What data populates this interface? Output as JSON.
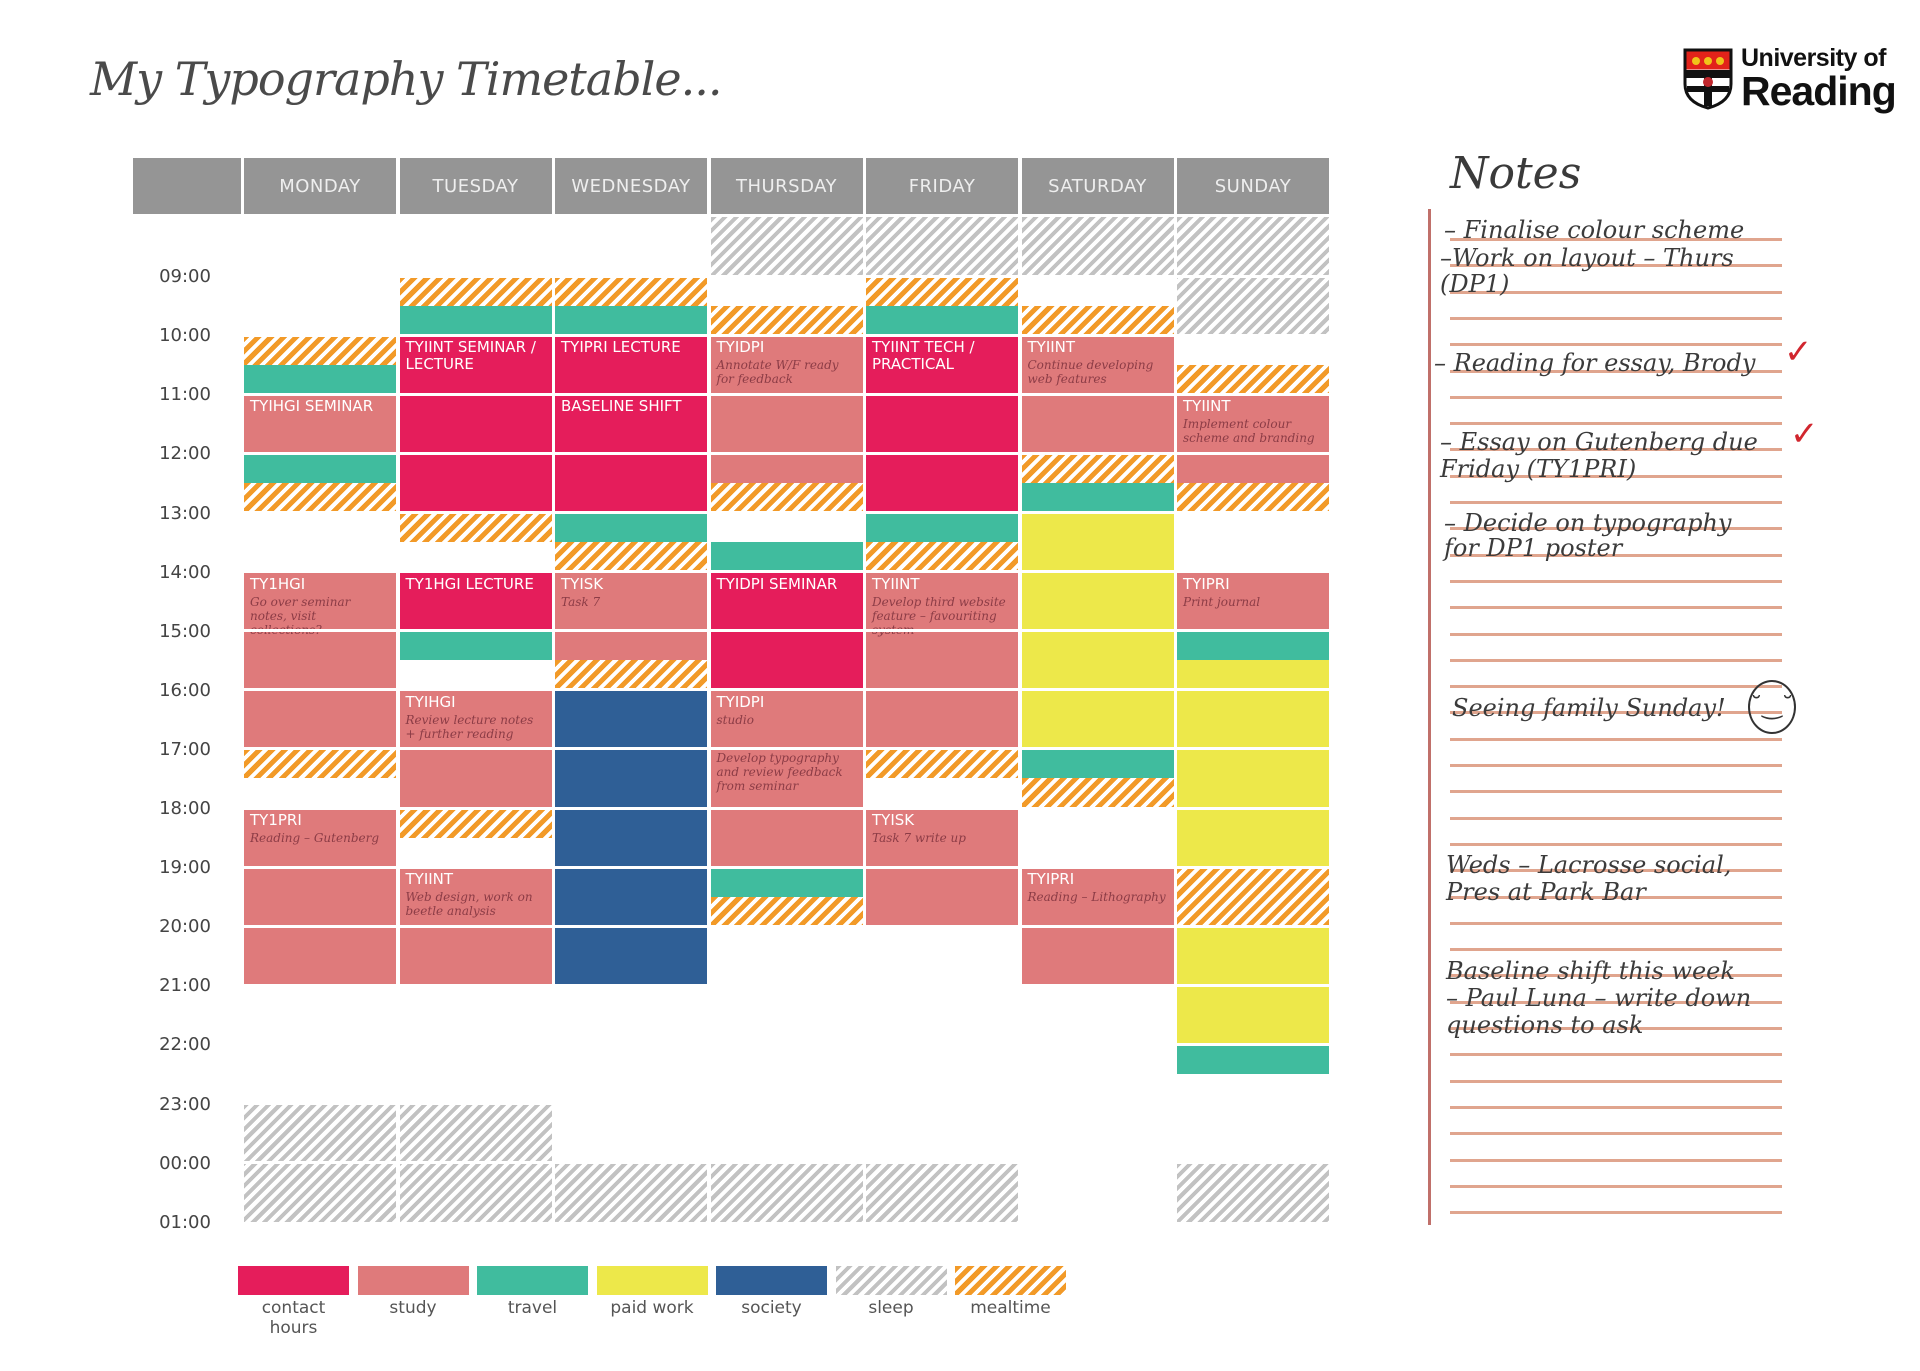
{
  "title": "My Typography Timetable...",
  "logo": {
    "line1": "University of",
    "line2": "Reading"
  },
  "days": [
    "MONDAY",
    "TUESDAY",
    "WEDNESDAY",
    "THURSDAY",
    "FRIDAY",
    "SATURDAY",
    "SUNDAY"
  ],
  "times": [
    "09:00",
    "10:00",
    "11:00",
    "12:00",
    "13:00",
    "14:00",
    "15:00",
    "16:00",
    "17:00",
    "18:00",
    "19:00",
    "20:00",
    "21:00",
    "22:00",
    "23:00",
    "00:00",
    "01:00"
  ],
  "colors": {
    "contact": "#e51d5b",
    "study": "#df7a7b",
    "travel": "#40bc9e",
    "paid": "#ede84a",
    "society": "#2f5f96",
    "sleep": "#c2c2c2",
    "meal": "#f29a28"
  },
  "legend": [
    {
      "type": "contact",
      "label": "contact hours"
    },
    {
      "type": "study",
      "label": "study"
    },
    {
      "type": "travel",
      "label": "travel"
    },
    {
      "type": "paid",
      "label": "paid work"
    },
    {
      "type": "society",
      "label": "society"
    },
    {
      "type": "sleep",
      "label": "sleep"
    },
    {
      "type": "meal",
      "label": "mealtime"
    }
  ],
  "events": [
    {
      "day": 0,
      "start": "10:00",
      "end": "10:30",
      "type": "meal"
    },
    {
      "day": 0,
      "start": "10:30",
      "end": "11:00",
      "type": "travel"
    },
    {
      "day": 0,
      "start": "11:00",
      "end": "12:00",
      "type": "study",
      "title": "TYIHGI SEMINAR"
    },
    {
      "day": 0,
      "start": "12:00",
      "end": "12:30",
      "type": "travel"
    },
    {
      "day": 0,
      "start": "12:30",
      "end": "13:00",
      "type": "meal"
    },
    {
      "day": 0,
      "start": "14:00",
      "end": "17:00",
      "type": "study",
      "title": "TY1HGI",
      "note": "Go over seminar notes, visit collections?"
    },
    {
      "day": 0,
      "start": "17:00",
      "end": "17:30",
      "type": "meal"
    },
    {
      "day": 0,
      "start": "18:00",
      "end": "21:00",
      "type": "study",
      "title": "TY1PRI",
      "note": "Reading – Gutenberg"
    },
    {
      "day": 0,
      "start": "23:00",
      "end": "01:00",
      "type": "sleep"
    },
    {
      "day": 1,
      "start": "09:00",
      "end": "09:30",
      "type": "meal"
    },
    {
      "day": 1,
      "start": "09:30",
      "end": "10:00",
      "type": "travel"
    },
    {
      "day": 1,
      "start": "10:00",
      "end": "13:00",
      "type": "contact",
      "title": "TYIINT SEMINAR / LECTURE"
    },
    {
      "day": 1,
      "start": "13:00",
      "end": "13:30",
      "type": "meal"
    },
    {
      "day": 1,
      "start": "14:00",
      "end": "15:00",
      "type": "contact",
      "title": "TY1HGI LECTURE"
    },
    {
      "day": 1,
      "start": "15:00",
      "end": "15:30",
      "type": "travel"
    },
    {
      "day": 1,
      "start": "16:00",
      "end": "18:00",
      "type": "study",
      "title": "TYIHGI",
      "note": "Review lecture notes + further reading"
    },
    {
      "day": 1,
      "start": "18:00",
      "end": "18:30",
      "type": "meal"
    },
    {
      "day": 1,
      "start": "19:00",
      "end": "21:00",
      "type": "study",
      "title": "TYIINT",
      "note": "Web design, work on beetle analysis"
    },
    {
      "day": 1,
      "start": "23:00",
      "end": "01:00",
      "type": "sleep"
    },
    {
      "day": 2,
      "start": "09:00",
      "end": "09:30",
      "type": "meal"
    },
    {
      "day": 2,
      "start": "09:30",
      "end": "10:00",
      "type": "travel"
    },
    {
      "day": 2,
      "start": "10:00",
      "end": "11:00",
      "type": "contact",
      "title": "TYIPRI LECTURE"
    },
    {
      "day": 2,
      "start": "11:00",
      "end": "13:00",
      "type": "contact",
      "title": "BASELINE SHIFT"
    },
    {
      "day": 2,
      "start": "13:00",
      "end": "13:30",
      "type": "travel"
    },
    {
      "day": 2,
      "start": "13:30",
      "end": "14:00",
      "type": "meal"
    },
    {
      "day": 2,
      "start": "14:00",
      "end": "15:30",
      "type": "study",
      "title": "TYISK",
      "note": "Task 7"
    },
    {
      "day": 2,
      "start": "15:30",
      "end": "16:00",
      "type": "meal"
    },
    {
      "day": 2,
      "start": "16:00",
      "end": "21:00",
      "type": "society"
    },
    {
      "day": 2,
      "start": "00:00",
      "end": "01:00",
      "type": "sleep"
    },
    {
      "day": 3,
      "start": "08:00",
      "end": "09:00",
      "type": "sleep"
    },
    {
      "day": 3,
      "start": "09:30",
      "end": "10:00",
      "type": "meal"
    },
    {
      "day": 3,
      "start": "10:00",
      "end": "12:30",
      "type": "study",
      "title": "TYIDPI",
      "note": "Annotate W/F ready for feedback"
    },
    {
      "day": 3,
      "start": "12:30",
      "end": "13:00",
      "type": "meal"
    },
    {
      "day": 3,
      "start": "13:30",
      "end": "14:00",
      "type": "travel"
    },
    {
      "day": 3,
      "start": "14:00",
      "end": "16:00",
      "type": "contact",
      "title": "TYIDPI SEMINAR"
    },
    {
      "day": 3,
      "start": "16:00",
      "end": "17:00",
      "type": "study",
      "title": "TYIDPI",
      "note": "studio"
    },
    {
      "day": 3,
      "start": "17:00",
      "end": "19:00",
      "type": "study",
      "note": "Develop typography and review feedback from seminar"
    },
    {
      "day": 3,
      "start": "19:00",
      "end": "19:30",
      "type": "travel"
    },
    {
      "day": 3,
      "start": "19:30",
      "end": "20:00",
      "type": "meal"
    },
    {
      "day": 3,
      "start": "00:00",
      "end": "01:00",
      "type": "sleep"
    },
    {
      "day": 4,
      "start": "08:00",
      "end": "09:00",
      "type": "sleep"
    },
    {
      "day": 4,
      "start": "09:00",
      "end": "09:30",
      "type": "meal"
    },
    {
      "day": 4,
      "start": "09:30",
      "end": "10:00",
      "type": "travel"
    },
    {
      "day": 4,
      "start": "10:00",
      "end": "13:00",
      "type": "contact",
      "title": "TYIINT TECH / PRACTICAL"
    },
    {
      "day": 4,
      "start": "13:00",
      "end": "13:30",
      "type": "travel"
    },
    {
      "day": 4,
      "start": "13:30",
      "end": "14:00",
      "type": "meal"
    },
    {
      "day": 4,
      "start": "14:00",
      "end": "17:00",
      "type": "study",
      "title": "TYIINT",
      "note": "Develop third website feature – favouriting system"
    },
    {
      "day": 4,
      "start": "17:00",
      "end": "17:30",
      "type": "meal"
    },
    {
      "day": 4,
      "start": "18:00",
      "end": "20:00",
      "type": "study",
      "title": "TYISK",
      "note": "Task 7 write up"
    },
    {
      "day": 4,
      "start": "00:00",
      "end": "01:00",
      "type": "sleep"
    },
    {
      "day": 5,
      "start": "08:00",
      "end": "09:00",
      "type": "sleep"
    },
    {
      "day": 5,
      "start": "09:30",
      "end": "10:00",
      "type": "meal"
    },
    {
      "day": 5,
      "start": "10:00",
      "end": "12:00",
      "type": "study",
      "title": "TYIINT",
      "note": "Continue developing web features"
    },
    {
      "day": 5,
      "start": "12:00",
      "end": "12:30",
      "type": "meal"
    },
    {
      "day": 5,
      "start": "12:30",
      "end": "13:00",
      "type": "travel"
    },
    {
      "day": 5,
      "start": "13:00",
      "end": "17:00",
      "type": "paid"
    },
    {
      "day": 5,
      "start": "17:00",
      "end": "17:30",
      "type": "travel"
    },
    {
      "day": 5,
      "start": "17:30",
      "end": "18:00",
      "type": "meal"
    },
    {
      "day": 5,
      "start": "19:00",
      "end": "21:00",
      "type": "study",
      "title": "TYIPRI",
      "note": "Reading – Lithography"
    },
    {
      "day": 6,
      "start": "08:00",
      "end": "10:00",
      "type": "sleep"
    },
    {
      "day": 6,
      "start": "10:30",
      "end": "11:00",
      "type": "meal"
    },
    {
      "day": 6,
      "start": "11:00",
      "end": "12:30",
      "type": "study",
      "title": "TYIINT",
      "note": "Implement colour scheme and branding"
    },
    {
      "day": 6,
      "start": "12:30",
      "end": "13:00",
      "type": "meal"
    },
    {
      "day": 6,
      "start": "14:00",
      "end": "15:00",
      "type": "study",
      "title": "TYIPRI",
      "note": "Print journal"
    },
    {
      "day": 6,
      "start": "15:00",
      "end": "15:30",
      "type": "travel"
    },
    {
      "day": 6,
      "start": "15:30",
      "end": "19:00",
      "type": "paid"
    },
    {
      "day": 6,
      "start": "19:00",
      "end": "20:00",
      "type": "meal"
    },
    {
      "day": 6,
      "start": "20:00",
      "end": "22:00",
      "type": "paid"
    },
    {
      "day": 6,
      "start": "22:00",
      "end": "22:30",
      "type": "travel"
    },
    {
      "day": 6,
      "start": "00:00",
      "end": "01:00",
      "type": "sleep"
    }
  ],
  "notes": {
    "title": "Notes",
    "lines": [
      "– Finalise colour scheme",
      "–Work on layout – Thurs",
      "(DP1)",
      "– Reading for essay, Brody",
      "– Essay on Gutenberg due",
      "Friday (TY1PRI)",
      "– Decide on typography",
      "for DP1 poster",
      "Seeing family Sunday!",
      "Weds – Lacrosse social,",
      "Pres at Park Bar",
      "Baseline shift this week",
      "– Paul Luna – write down",
      "questions to ask"
    ],
    "checked": [
      "– Reading for essay, Brody",
      "– Essay on Gutenberg due"
    ]
  }
}
